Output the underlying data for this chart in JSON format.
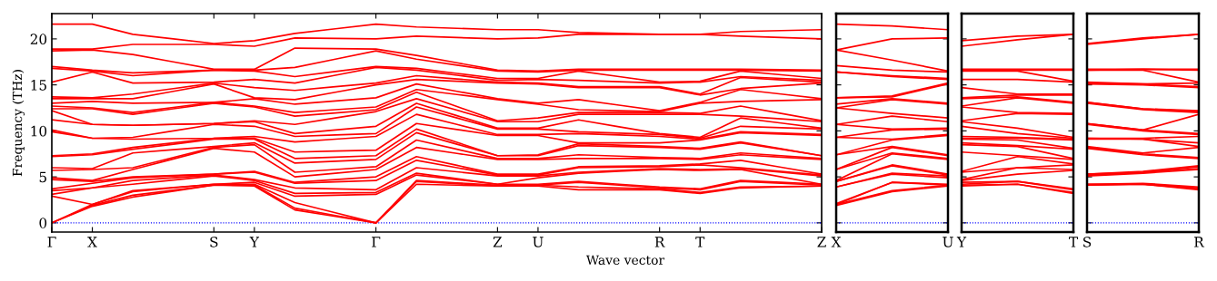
{
  "chart_data": [
    {
      "type": "line",
      "ylabel": "Frequency (THz)",
      "xlabel": "Wave vector",
      "categories": [
        "Γ",
        "X",
        null,
        null,
        "S",
        "Y",
        null,
        null,
        "Γ",
        null,
        null,
        "Z",
        "U",
        null,
        null,
        "R",
        "T",
        null,
        null,
        "Z"
      ],
      "ylim": [
        -1,
        22.75
      ],
      "yticks": [
        0,
        5,
        10,
        15,
        20
      ],
      "ref_lines": [
        {
          "axis": "y",
          "value": 0,
          "color": "#0000ff",
          "line_style": "dotted"
        }
      ],
      "series": [
        {
          "color": "#ff0000",
          "values": [
            0,
            1.8,
            2.8,
            3.45,
            4.1,
            4.0,
            1.4,
            0.7,
            0,
            4.2,
            4.1,
            4.0,
            4.0,
            3.6,
            3.6,
            3.6,
            3.2,
            3.8,
            3.9,
            4.0
          ]
        },
        {
          "color": "#ff0000",
          "values": [
            0,
            1.9,
            3.0,
            3.55,
            4.1,
            4.1,
            1.6,
            0.8,
            0,
            4.5,
            4.25,
            4.0,
            4.1,
            3.9,
            3.8,
            3.7,
            3.3,
            3.9,
            3.95,
            4.0
          ]
        },
        {
          "color": "#ff0000",
          "values": [
            0,
            2.0,
            3.4,
            3.8,
            4.2,
            4.2,
            2.2,
            1.1,
            0,
            4.6,
            4.35,
            4.1,
            4.1,
            4.4,
            4.1,
            3.8,
            3.6,
            4.5,
            4.3,
            4.1
          ]
        },
        {
          "color": "#ff0000",
          "values": [
            2.9,
            2.0,
            3.5,
            3.85,
            4.2,
            4.4,
            2.9,
            3.0,
            3.1,
            5.2,
            4.7,
            4.2,
            4.2,
            4.5,
            4.2,
            3.9,
            3.7,
            4.6,
            4.4,
            4.2
          ]
        },
        {
          "color": "#ff0000",
          "values": [
            3.1,
            3.8,
            4.2,
            4.65,
            5.1,
            4.6,
            3.2,
            3.25,
            3.3,
            5.4,
            4.8,
            4.2,
            4.9,
            5.4,
            5.6,
            5.8,
            5.7,
            5.8,
            5.0,
            4.2
          ]
        },
        {
          "color": "#ff0000",
          "values": [
            3.5,
            3.8,
            4.6,
            4.9,
            5.2,
            4.7,
            3.8,
            3.7,
            3.6,
            6.0,
            5.55,
            5.1,
            5.1,
            5.5,
            5.7,
            5.9,
            5.8,
            5.9,
            5.5,
            5.1
          ]
        },
        {
          "color": "#ff0000",
          "values": [
            3.7,
            4.3,
            4.9,
            5.1,
            5.3,
            5.5,
            4.3,
            4.45,
            4.6,
            6.8,
            6.0,
            5.2,
            5.2,
            6.0,
            6.05,
            6.1,
            6.3,
            6.0,
            5.6,
            5.2
          ]
        },
        {
          "color": "#ff0000",
          "values": [
            4.7,
            4.5,
            5.0,
            5.15,
            5.3,
            5.6,
            4.4,
            4.7,
            5.0,
            7.2,
            6.25,
            5.3,
            5.3,
            6.1,
            6.15,
            6.2,
            6.4,
            6.8,
            6.05,
            5.3
          ]
        },
        {
          "color": "#ff0000",
          "values": [
            4.9,
            4.6,
            5.8,
            6.95,
            8.1,
            7.7,
            5.0,
            5.4,
            5.8,
            8.2,
            7.55,
            6.9,
            6.9,
            7.0,
            7.0,
            7.0,
            6.9,
            7.4,
            7.15,
            6.9
          ]
        },
        {
          "color": "#ff0000",
          "values": [
            5.7,
            5.8,
            6.0,
            7.1,
            8.2,
            8.5,
            5.5,
            5.8,
            6.1,
            9.0,
            8.0,
            7.0,
            7.0,
            7.4,
            7.25,
            7.1,
            7.0,
            7.6,
            7.3,
            7.0
          ]
        },
        {
          "color": "#ff0000",
          "values": [
            6.0,
            5.9,
            7.6,
            7.95,
            8.3,
            8.7,
            6.5,
            6.7,
            6.9,
            9.8,
            8.55,
            7.3,
            7.3,
            8.4,
            8.3,
            8.2,
            8.0,
            8.7,
            8.0,
            7.3
          ]
        },
        {
          "color": "#ff0000",
          "values": [
            7.2,
            7.4,
            8.0,
            8.55,
            9.1,
            9.1,
            7.0,
            7.15,
            7.3,
            10.2,
            8.75,
            7.3,
            7.4,
            8.6,
            8.45,
            8.3,
            8.1,
            8.8,
            8.05,
            7.3
          ]
        },
        {
          "color": "#ff0000",
          "values": [
            7.3,
            7.5,
            8.2,
            8.7,
            9.2,
            9.2,
            7.7,
            7.8,
            7.9,
            10.8,
            10.15,
            9.5,
            9.5,
            8.7,
            8.7,
            8.7,
            9.0,
            9.8,
            9.65,
            9.5
          ]
        },
        {
          "color": "#ff0000",
          "values": [
            9.9,
            9.2,
            9.1,
            9.15,
            9.2,
            9.4,
            8.8,
            9.1,
            9.4,
            11.8,
            10.7,
            9.6,
            9.6,
            9.7,
            9.55,
            9.4,
            9.1,
            9.9,
            9.75,
            9.6
          ]
        },
        {
          "color": "#ff0000",
          "values": [
            10.1,
            9.2,
            9.3,
            10.0,
            10.7,
            10.5,
            9.4,
            9.55,
            9.7,
            12.6,
            11.4,
            10.2,
            10.2,
            9.9,
            9.75,
            9.6,
            9.2,
            10.5,
            10.35,
            10.2
          ]
        },
        {
          "color": "#ff0000",
          "values": [
            11.2,
            10.7,
            10.6,
            10.7,
            10.8,
            11.0,
            9.7,
            10.1,
            10.5,
            13.0,
            11.65,
            10.3,
            10.3,
            11.2,
            10.45,
            9.7,
            9.3,
            11.4,
            10.85,
            10.3
          ]
        },
        {
          "color": "#ff0000",
          "values": [
            12.2,
            10.7,
            10.6,
            10.7,
            10.8,
            11.1,
            10.7,
            11.4,
            12.1,
            13.5,
            12.25,
            11.0,
            11.0,
            11.8,
            11.8,
            11.8,
            11.8,
            11.6,
            11.3,
            11.0
          ]
        },
        {
          "color": "#ff0000",
          "values": [
            12.4,
            12.4,
            11.8,
            12.4,
            13.0,
            12.6,
            11.6,
            11.95,
            12.3,
            14.2,
            12.65,
            11.1,
            11.4,
            12.0,
            12.0,
            12.0,
            11.9,
            12.7,
            11.9,
            11.1
          ]
        },
        {
          "color": "#ff0000",
          "values": [
            12.7,
            12.5,
            12.0,
            12.55,
            13.1,
            12.7,
            12.0,
            12.3,
            12.6,
            14.5,
            13.95,
            13.4,
            12.9,
            12.3,
            12.2,
            12.1,
            13.0,
            13.2,
            13.3,
            13.4
          ]
        },
        {
          "color": "#ff0000",
          "values": [
            13.0,
            13.2,
            13.0,
            13.05,
            13.1,
            13.5,
            12.9,
            13.25,
            13.6,
            15.1,
            14.3,
            13.5,
            13.0,
            13.4,
            12.8,
            12.2,
            13.1,
            14.5,
            14.0,
            13.5
          ]
        },
        {
          "color": "#ff0000",
          "values": [
            13.5,
            13.5,
            13.5,
            14.3,
            15.1,
            13.6,
            13.4,
            14.2,
            15.0,
            15.6,
            15.4,
            15.2,
            15.1,
            14.7,
            14.7,
            14.7,
            13.9,
            14.6,
            14.9,
            15.2
          ]
        },
        {
          "color": "#ff0000",
          "values": [
            13.7,
            13.6,
            14.0,
            14.6,
            15.2,
            14.7,
            14.4,
            14.8,
            15.2,
            16.0,
            15.65,
            15.3,
            15.2,
            14.8,
            14.8,
            14.8,
            14.0,
            15.8,
            15.55,
            15.3
          ]
        },
        {
          "color": "#ff0000",
          "values": [
            15.3,
            16.4,
            15.2,
            15.25,
            15.3,
            15.6,
            15.2,
            16.05,
            16.9,
            16.6,
            16.05,
            15.5,
            15.6,
            15.5,
            15.35,
            15.2,
            15.3,
            15.9,
            15.7,
            15.5
          ]
        },
        {
          "color": "#ff0000",
          "values": [
            16.8,
            16.5,
            16.0,
            16.3,
            16.6,
            16.5,
            15.9,
            16.45,
            17.0,
            16.8,
            16.25,
            15.7,
            15.7,
            16.5,
            15.9,
            15.3,
            15.4,
            16.5,
            16.1,
            15.7
          ]
        },
        {
          "color": "#ff0000",
          "values": [
            17.0,
            16.6,
            16.3,
            16.45,
            16.6,
            16.6,
            16.9,
            17.8,
            18.7,
            17.8,
            17.15,
            16.5,
            16.4,
            16.6,
            16.6,
            16.6,
            16.6,
            16.6,
            16.55,
            16.5
          ]
        },
        {
          "color": "#ff0000",
          "values": [
            18.7,
            18.8,
            18.3,
            17.5,
            16.7,
            16.7,
            19.0,
            18.95,
            18.9,
            18.2,
            17.4,
            16.6,
            16.5,
            16.7,
            16.7,
            16.7,
            16.7,
            16.7,
            16.65,
            16.6
          ]
        },
        {
          "color": "#ff0000",
          "values": [
            18.9,
            18.9,
            19.4,
            19.4,
            19.4,
            19.2,
            20.1,
            20.05,
            20.0,
            20.3,
            20.15,
            20.0,
            20.1,
            20.5,
            20.5,
            20.5,
            20.5,
            20.3,
            20.15,
            20.0
          ]
        },
        {
          "color": "#ff0000",
          "values": [
            21.6,
            21.6,
            20.5,
            20.0,
            19.5,
            19.8,
            20.6,
            21.1,
            21.6,
            21.3,
            21.15,
            21.0,
            21.0,
            20.7,
            20.6,
            20.5,
            20.5,
            20.8,
            20.9,
            21.0
          ]
        }
      ]
    },
    {
      "type": "line",
      "categories": [
        "X",
        null,
        "U"
      ],
      "ylim": [
        -1,
        22.75
      ],
      "yticks": [
        0,
        5,
        10,
        15,
        20
      ],
      "tick_labels": "x",
      "ref_lines": [
        {
          "axis": "y",
          "value": 0,
          "color": "#0000ff",
          "line_style": "dotted"
        }
      ],
      "series": [
        {
          "color": "#ff0000",
          "values": [
            1.9,
            3.4,
            4.0
          ]
        },
        {
          "color": "#ff0000",
          "values": [
            2.0,
            3.5,
            4.1
          ]
        },
        {
          "color": "#ff0000",
          "values": [
            2.0,
            4.4,
            4.1
          ]
        },
        {
          "color": "#ff0000",
          "values": [
            2.1,
            4.4,
            4.2
          ]
        },
        {
          "color": "#ff0000",
          "values": [
            3.9,
            5.3,
            4.9
          ]
        },
        {
          "color": "#ff0000",
          "values": [
            3.9,
            5.4,
            5.1
          ]
        },
        {
          "color": "#ff0000",
          "values": [
            4.5,
            6.2,
            5.2
          ]
        },
        {
          "color": "#ff0000",
          "values": [
            4.5,
            6.3,
            5.3
          ]
        },
        {
          "color": "#ff0000",
          "values": [
            4.6,
            7.5,
            6.9
          ]
        },
        {
          "color": "#ff0000",
          "values": [
            5.8,
            7.6,
            7.0
          ]
        },
        {
          "color": "#ff0000",
          "values": [
            5.8,
            8.2,
            7.3
          ]
        },
        {
          "color": "#ff0000",
          "values": [
            7.4,
            8.3,
            7.4
          ]
        },
        {
          "color": "#ff0000",
          "values": [
            7.4,
            9.0,
            9.5
          ]
        },
        {
          "color": "#ff0000",
          "values": [
            9.3,
            9.1,
            9.6
          ]
        },
        {
          "color": "#ff0000",
          "values": [
            9.3,
            10.1,
            10.2
          ]
        },
        {
          "color": "#ff0000",
          "values": [
            10.7,
            10.2,
            10.3
          ]
        },
        {
          "color": "#ff0000",
          "values": [
            10.7,
            11.6,
            11.0
          ]
        },
        {
          "color": "#ff0000",
          "values": [
            12.5,
            11.9,
            11.4
          ]
        },
        {
          "color": "#ff0000",
          "values": [
            12.5,
            13.4,
            12.9
          ]
        },
        {
          "color": "#ff0000",
          "values": [
            12.9,
            13.5,
            13.0
          ]
        },
        {
          "color": "#ff0000",
          "values": [
            13.6,
            13.7,
            15.1
          ]
        },
        {
          "color": "#ff0000",
          "values": [
            13.6,
            13.8,
            15.2
          ]
        },
        {
          "color": "#ff0000",
          "values": [
            16.4,
            15.9,
            15.6
          ]
        },
        {
          "color": "#ff0000",
          "values": [
            16.4,
            16.0,
            15.7
          ]
        },
        {
          "color": "#ff0000",
          "values": [
            17.1,
            16.6,
            16.4
          ]
        },
        {
          "color": "#ff0000",
          "values": [
            18.8,
            17.7,
            16.5
          ]
        },
        {
          "color": "#ff0000",
          "values": [
            18.8,
            20.0,
            20.1
          ]
        },
        {
          "color": "#ff0000",
          "values": [
            21.6,
            21.4,
            21.0
          ]
        }
      ]
    },
    {
      "type": "line",
      "categories": [
        "Y",
        null,
        "T"
      ],
      "ylim": [
        -1,
        22.75
      ],
      "yticks": [
        0,
        5,
        10,
        15,
        20
      ],
      "tick_labels": "x",
      "ref_lines": [
        {
          "axis": "y",
          "value": 0,
          "color": "#0000ff",
          "line_style": "dotted"
        }
      ],
      "series": [
        {
          "color": "#ff0000",
          "values": [
            4.0,
            4.2,
            3.2
          ]
        },
        {
          "color": "#ff0000",
          "values": [
            4.1,
            4.2,
            3.3
          ]
        },
        {
          "color": "#ff0000",
          "values": [
            4.2,
            4.5,
            3.6
          ]
        },
        {
          "color": "#ff0000",
          "values": [
            4.4,
            4.5,
            3.7
          ]
        },
        {
          "color": "#ff0000",
          "values": [
            4.6,
            5.3,
            5.7
          ]
        },
        {
          "color": "#ff0000",
          "values": [
            4.7,
            6.0,
            5.8
          ]
        },
        {
          "color": "#ff0000",
          "values": [
            5.5,
            6.0,
            6.3
          ]
        },
        {
          "color": "#ff0000",
          "values": [
            5.6,
            7.2,
            6.4
          ]
        },
        {
          "color": "#ff0000",
          "values": [
            7.7,
            7.3,
            6.9
          ]
        },
        {
          "color": "#ff0000",
          "values": [
            8.5,
            8.3,
            7.0
          ]
        },
        {
          "color": "#ff0000",
          "values": [
            8.7,
            8.4,
            8.0
          ]
        },
        {
          "color": "#ff0000",
          "values": [
            9.1,
            9.0,
            8.1
          ]
        },
        {
          "color": "#ff0000",
          "values": [
            9.2,
            9.2,
            9.0
          ]
        },
        {
          "color": "#ff0000",
          "values": [
            9.4,
            9.3,
            9.1
          ]
        },
        {
          "color": "#ff0000",
          "values": [
            10.5,
            9.7,
            9.2
          ]
        },
        {
          "color": "#ff0000",
          "values": [
            11.0,
            10.3,
            9.3
          ]
        },
        {
          "color": "#ff0000",
          "values": [
            11.1,
            11.9,
            11.8
          ]
        },
        {
          "color": "#ff0000",
          "values": [
            12.6,
            12.0,
            11.9
          ]
        },
        {
          "color": "#ff0000",
          "values": [
            12.7,
            13.6,
            13.0
          ]
        },
        {
          "color": "#ff0000",
          "values": [
            13.5,
            13.7,
            13.1
          ]
        },
        {
          "color": "#ff0000",
          "values": [
            13.6,
            13.9,
            13.9
          ]
        },
        {
          "color": "#ff0000",
          "values": [
            14.7,
            14.0,
            14.0
          ]
        },
        {
          "color": "#ff0000",
          "values": [
            15.6,
            15.6,
            15.3
          ]
        },
        {
          "color": "#ff0000",
          "values": [
            16.5,
            16.5,
            15.4
          ]
        },
        {
          "color": "#ff0000",
          "values": [
            16.6,
            16.6,
            16.6
          ]
        },
        {
          "color": "#ff0000",
          "values": [
            16.7,
            16.7,
            16.7
          ]
        },
        {
          "color": "#ff0000",
          "values": [
            19.2,
            19.9,
            20.5
          ]
        },
        {
          "color": "#ff0000",
          "values": [
            19.8,
            20.3,
            20.5
          ]
        }
      ]
    },
    {
      "type": "line",
      "categories": [
        "S",
        null,
        "R"
      ],
      "ylim": [
        -1,
        22.75
      ],
      "yticks": [
        0,
        5,
        10,
        15,
        20
      ],
      "tick_labels": "x",
      "ref_lines": [
        {
          "axis": "y",
          "value": 0,
          "color": "#0000ff",
          "line_style": "dotted"
        }
      ],
      "series": [
        {
          "color": "#ff0000",
          "values": [
            4.1,
            4.2,
            3.6
          ]
        },
        {
          "color": "#ff0000",
          "values": [
            4.1,
            4.2,
            3.7
          ]
        },
        {
          "color": "#ff0000",
          "values": [
            4.2,
            4.2,
            3.8
          ]
        },
        {
          "color": "#ff0000",
          "values": [
            4.2,
            4.3,
            3.9
          ]
        },
        {
          "color": "#ff0000",
          "values": [
            5.1,
            5.4,
            5.8
          ]
        },
        {
          "color": "#ff0000",
          "values": [
            5.2,
            5.5,
            5.9
          ]
        },
        {
          "color": "#ff0000",
          "values": [
            5.3,
            5.5,
            6.1
          ]
        },
        {
          "color": "#ff0000",
          "values": [
            5.3,
            5.6,
            6.2
          ]
        },
        {
          "color": "#ff0000",
          "values": [
            8.1,
            7.4,
            7.0
          ]
        },
        {
          "color": "#ff0000",
          "values": [
            8.2,
            7.5,
            7.1
          ]
        },
        {
          "color": "#ff0000",
          "values": [
            8.3,
            7.6,
            8.2
          ]
        },
        {
          "color": "#ff0000",
          "values": [
            9.1,
            9.1,
            8.3
          ]
        },
        {
          "color": "#ff0000",
          "values": [
            9.2,
            9.1,
            8.7
          ]
        },
        {
          "color": "#ff0000",
          "values": [
            9.2,
            9.2,
            9.4
          ]
        },
        {
          "color": "#ff0000",
          "values": [
            10.7,
            10.0,
            9.6
          ]
        },
        {
          "color": "#ff0000",
          "values": [
            10.8,
            10.1,
            9.7
          ]
        },
        {
          "color": "#ff0000",
          "values": [
            10.8,
            10.1,
            11.8
          ]
        },
        {
          "color": "#ff0000",
          "values": [
            13.0,
            12.3,
            12.0
          ]
        },
        {
          "color": "#ff0000",
          "values": [
            13.1,
            12.4,
            12.1
          ]
        },
        {
          "color": "#ff0000",
          "values": [
            13.1,
            12.4,
            12.2
          ]
        },
        {
          "color": "#ff0000",
          "values": [
            15.1,
            15.0,
            14.7
          ]
        },
        {
          "color": "#ff0000",
          "values": [
            15.2,
            15.1,
            14.8
          ]
        },
        {
          "color": "#ff0000",
          "values": [
            15.3,
            15.1,
            15.2
          ]
        },
        {
          "color": "#ff0000",
          "values": [
            16.6,
            16.6,
            15.3
          ]
        },
        {
          "color": "#ff0000",
          "values": [
            16.6,
            16.7,
            16.6
          ]
        },
        {
          "color": "#ff0000",
          "values": [
            16.7,
            16.7,
            16.7
          ]
        },
        {
          "color": "#ff0000",
          "values": [
            19.4,
            20.0,
            20.5
          ]
        },
        {
          "color": "#ff0000",
          "values": [
            19.5,
            20.1,
            20.5
          ]
        }
      ]
    }
  ]
}
